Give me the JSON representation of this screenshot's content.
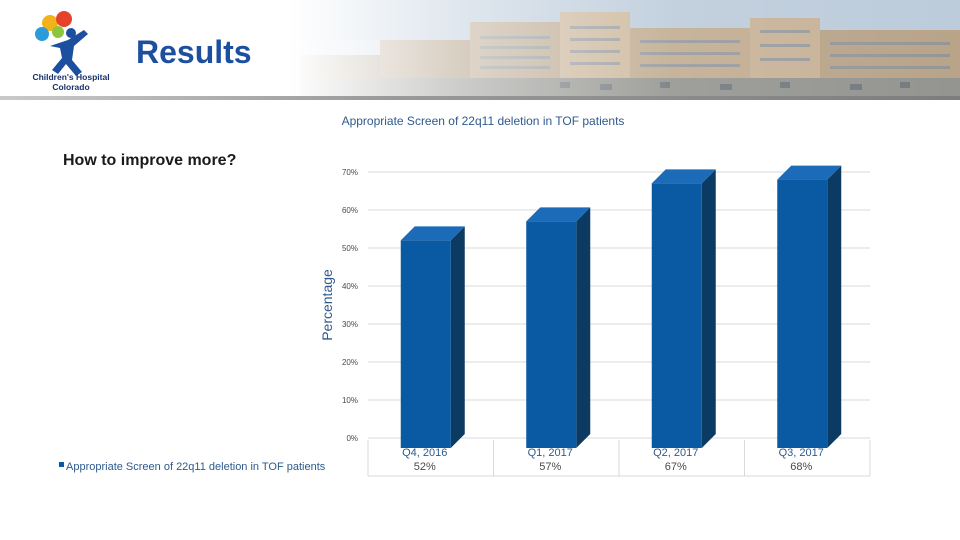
{
  "header": {
    "title": "Results",
    "logo_line1": "Children's Hospital",
    "logo_line2": "Colorado"
  },
  "side": {
    "heading": "How to improve more?"
  },
  "chart_data": {
    "type": "bar",
    "title": "Appropriate Screen of 22q11 deletion in TOF patients",
    "ylabel": "Percentage",
    "xlabel": "",
    "ylim": [
      0,
      70
    ],
    "yticks": [
      0,
      10,
      20,
      30,
      40,
      50,
      60,
      70
    ],
    "ytick_labels": [
      "0%",
      "10%",
      "20%",
      "30%",
      "40%",
      "50%",
      "60%",
      "70%"
    ],
    "categories": [
      "Q4, 2016",
      "Q1, 2017",
      "Q2, 2017",
      "Q3, 2017"
    ],
    "series": [
      {
        "name": "Appropriate Screen of 22q11 deletion in TOF patients",
        "values": [
          52,
          57,
          67,
          68
        ],
        "value_labels": [
          "52%",
          "57%",
          "67%",
          "68%"
        ]
      }
    ],
    "legend_position": "bottom-left",
    "colors": {
      "bar_front": "#0a5aa3",
      "bar_side": "#0b3a63",
      "bar_top": "#1b6bb8",
      "grid": "#d9d9d9"
    }
  }
}
